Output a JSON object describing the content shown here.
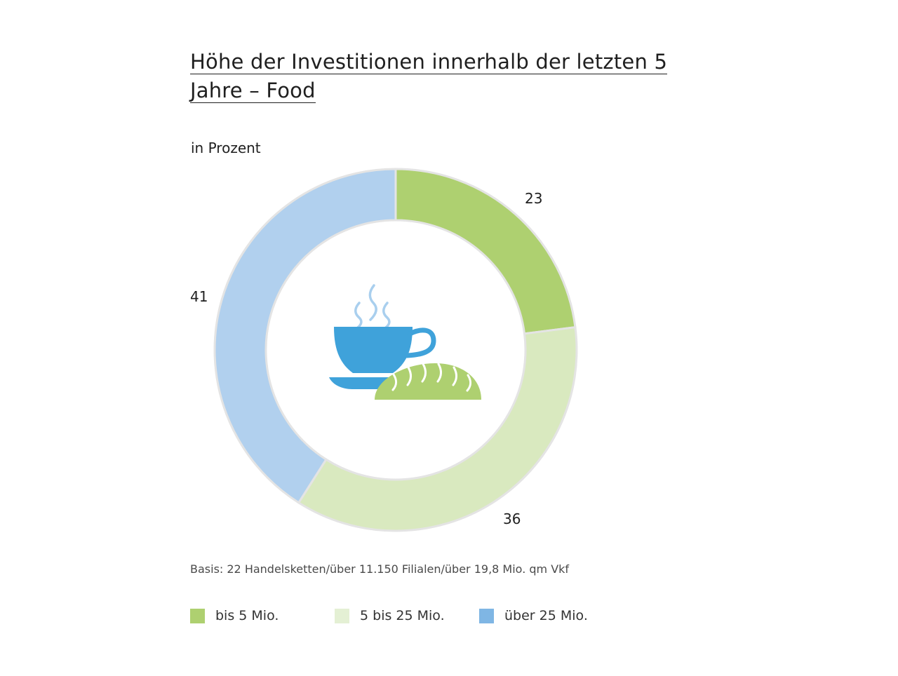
{
  "chart_data": {
    "type": "pie",
    "title": "Höhe der Investitionen innerhalb der letzten 5 Jahre – Food",
    "unit_label": "in Prozent",
    "categories": [
      "bis 5 Mio.",
      "5 bis 25 Mio.",
      "über 25 Mio."
    ],
    "values": [
      23,
      36,
      41
    ],
    "data_labels": [
      "23",
      "36",
      "41"
    ],
    "colors": [
      "#aed070",
      "#d9e9bf",
      "#b1d0ee"
    ],
    "legend_colors": [
      "#aed070",
      "#e4f0d4",
      "#7fb6e4"
    ],
    "legend_position": "bottom",
    "style": "donut",
    "center_icon": "coffee-cup-and-bread-icon",
    "footnote": "Basis: 22 Handelsketten/über 11.150 Filialen/über 19,8 Mio. qm Vkf"
  },
  "icon_colors": {
    "cup": "#3fa2da",
    "steam": "#a9cfee",
    "bread": "#aed070"
  }
}
